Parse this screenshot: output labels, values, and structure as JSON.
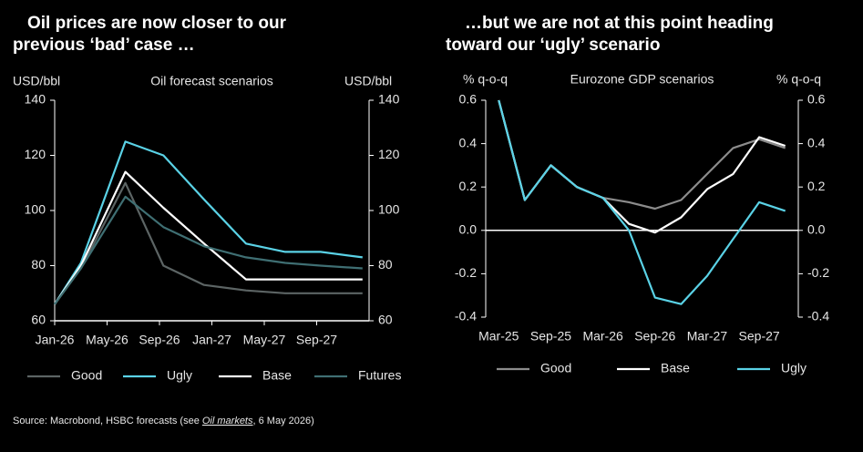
{
  "chart_data": [
    {
      "type": "line",
      "title": [
        "Oil prices are now closer to our",
        "previous ‘bad’ case …"
      ],
      "subtitle": "Oil forecast scenarios",
      "ylabel": "USD/bbl",
      "y2label": "USD/bbl",
      "x": [
        0,
        2,
        5.4,
        8.3,
        11.4,
        14.6,
        17.6,
        20.3,
        23.5
      ],
      "xlim": [
        0,
        24
      ],
      "xticks": [
        {
          "value": 0,
          "label": "Jan-26"
        },
        {
          "value": 4,
          "label": "May-26"
        },
        {
          "value": 8,
          "label": "Sep-26"
        },
        {
          "value": 12,
          "label": "Jan-27"
        },
        {
          "value": 16,
          "label": "May-27"
        },
        {
          "value": 20,
          "label": "Sep-27"
        }
      ],
      "ylim": [
        60,
        140
      ],
      "yticks": [
        60,
        80,
        100,
        120,
        140
      ],
      "series": [
        {
          "name": "Good",
          "color": "#5c6464",
          "values": [
            66,
            79,
            110,
            80,
            73,
            71,
            70,
            70,
            70
          ]
        },
        {
          "name": "Ugly",
          "color": "#5ad2e6",
          "values": [
            66,
            81,
            125,
            120,
            104,
            88,
            85,
            85,
            83
          ]
        },
        {
          "name": "Base",
          "color": "#ffffff",
          "values": [
            66,
            80,
            114,
            101,
            88,
            75,
            75,
            75,
            75
          ]
        },
        {
          "name": "Futures",
          "color": "#3f6f73",
          "values": [
            66,
            79,
            105,
            94,
            87,
            83,
            81,
            80,
            79
          ]
        }
      ]
    },
    {
      "type": "line",
      "title": [
        "…but we are not at this point heading",
        "toward our ‘ugly’ scenario"
      ],
      "subtitle": "Eurozone GDP scenarios",
      "ylabel": "% q-o-q",
      "y2label": "% q-o-q",
      "categories": [
        "Mar-25",
        null,
        "Sep-25",
        null,
        "Mar-26",
        null,
        "Sep-26",
        null,
        "Mar-27",
        null,
        "Sep-27",
        null
      ],
      "ylim": [
        -0.4,
        0.6
      ],
      "yticks": [
        -0.4,
        -0.2,
        {
          "value": 0,
          "label": "0.0"
        },
        0.2,
        0.4,
        0.6
      ],
      "zero_line": true,
      "series": [
        {
          "name": "Good",
          "color": "#8c8c8c",
          "values": [
            0.6,
            0.14,
            0.3,
            0.2,
            0.15,
            0.13,
            0.1,
            0.14,
            0.26,
            0.38,
            0.42,
            0.38
          ]
        },
        {
          "name": "Base",
          "color": "#ffffff",
          "values": [
            0.6,
            0.14,
            0.3,
            0.2,
            0.15,
            0.03,
            -0.01,
            0.06,
            0.19,
            0.26,
            0.43,
            0.39
          ]
        },
        {
          "name": "Ugly",
          "color": "#5ad2e6",
          "values": [
            0.6,
            0.14,
            0.3,
            0.2,
            0.15,
            0.0,
            -0.31,
            -0.34,
            -0.21,
            -0.04,
            0.13,
            0.09
          ]
        }
      ]
    }
  ],
  "source": [
    "Source: Macrobond, HSBC forecasts (see ",
    "Oil markets",
    ", 6 May 2026)"
  ]
}
